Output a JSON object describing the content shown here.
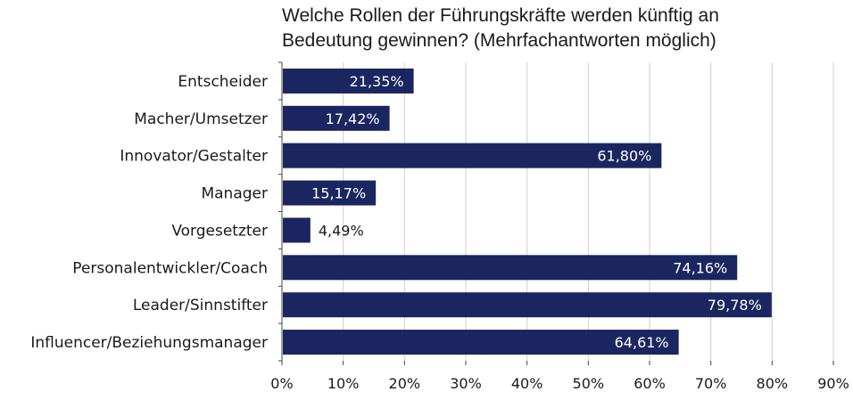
{
  "chart_data": {
    "type": "bar",
    "orientation": "horizontal",
    "title": [
      "Welche Rollen der Führungskräfte werden künftig an",
      "Bedeutung gewinnen? (Mehrfachantworten möglich)"
    ],
    "categories": [
      "Entscheider",
      "Macher/Umsetzer",
      "Innovator/Gestalter",
      "Manager",
      "Vorgesetzter",
      "Personalentwickler/Coach",
      "Leader/Sinnstifter",
      "Influencer/Beziehungsmanager"
    ],
    "values": [
      21.35,
      17.42,
      61.8,
      15.17,
      4.49,
      74.16,
      79.78,
      64.61
    ],
    "data_labels": [
      "21,35%",
      "17,42%",
      "61,80%",
      "15,17%",
      "4,49%",
      "74,16%",
      "79,78%",
      "64,61%"
    ],
    "xlim": [
      0,
      90
    ],
    "x_ticks": [
      0,
      10,
      20,
      30,
      40,
      50,
      60,
      70,
      80,
      90
    ],
    "x_tick_labels": [
      "0%",
      "10%",
      "20%",
      "30%",
      "40%",
      "50%",
      "60%",
      "70%",
      "80%",
      "90%"
    ],
    "xlabel": "",
    "ylabel": "",
    "grid": true,
    "colors": {
      "bar": "#1b2660",
      "grid": "#cfcfcf",
      "axis": "#444444",
      "label_inside": "#ffffff",
      "label_outside": "#1a1a1a"
    }
  }
}
